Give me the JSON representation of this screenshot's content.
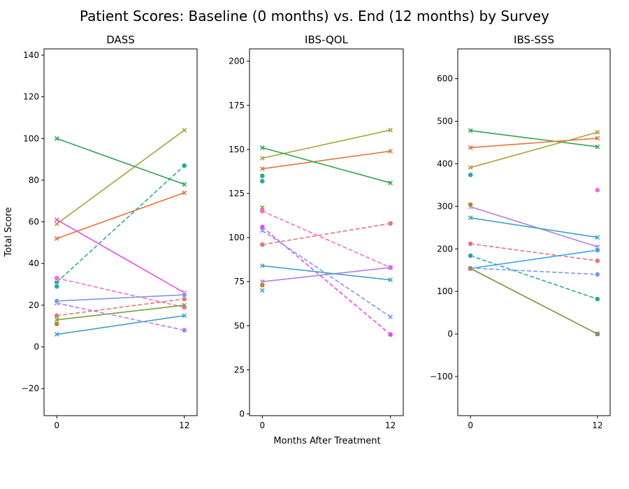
{
  "figure": {
    "title": "Patient Scores: Baseline (0 months) vs. End (12 months) by Survey",
    "xlabel": "Months After Treatment",
    "ylabel": "Total Score"
  },
  "chart_data": [
    {
      "type": "line",
      "title": "DASS",
      "x": [
        0,
        12
      ],
      "xticks": [
        "0",
        "12"
      ],
      "ylim": [
        -33,
        143
      ],
      "yticks": [
        -20,
        0,
        20,
        40,
        60,
        80,
        100,
        120,
        140
      ],
      "series": [
        {
          "color": "#e8737a",
          "marker": "circle",
          "dashed": true,
          "values": [
            15,
            23
          ]
        },
        {
          "color": "#e8723a",
          "marker": "x",
          "dashed": false,
          "values": [
            52,
            74
          ]
        },
        {
          "color": "#a8a336",
          "marker": "x",
          "dashed": false,
          "values": [
            59,
            104
          ]
        },
        {
          "color": "#31a354",
          "marker": "x",
          "dashed": false,
          "values": [
            100,
            78
          ]
        },
        {
          "color": "#2ca89a",
          "marker": "circle",
          "dashed": true,
          "values": [
            31,
            87
          ]
        },
        {
          "color": "#3ba3c8",
          "marker": "x",
          "dashed": false,
          "values": [
            6,
            15
          ]
        },
        {
          "color": "#f56ad8",
          "marker": "circle",
          "dashed": true,
          "values": [
            33,
            19
          ]
        },
        {
          "color": "#e84ce8",
          "marker": "x",
          "dashed": false,
          "values": [
            61,
            26
          ]
        },
        {
          "color": "#76a336",
          "marker": "x",
          "dashed": false,
          "values": [
            13,
            20
          ]
        },
        {
          "color": "#b77be8",
          "marker": "x",
          "dashed": true,
          "values": [
            21,
            8
          ]
        },
        {
          "color": "#7a9ae8",
          "marker": "circle",
          "dashed": false,
          "values": [
            22,
            25
          ]
        }
      ],
      "extra_points": [
        {
          "color": "#b7862a",
          "marker": "circle",
          "x": 0,
          "y": 11
        },
        {
          "color": "#2ca89a",
          "marker": "circle",
          "x": 0,
          "y": 29
        },
        {
          "color": "#b77be8",
          "marker": "circle",
          "x": 12,
          "y": 8
        }
      ]
    },
    {
      "type": "line",
      "title": "IBS-QOL",
      "x": [
        0,
        12
      ],
      "xticks": [
        "0",
        "12"
      ],
      "ylim": [
        -1,
        207
      ],
      "yticks": [
        0,
        25,
        50,
        75,
        100,
        125,
        150,
        175,
        200
      ],
      "series": [
        {
          "color": "#a8a336",
          "marker": "x",
          "dashed": false,
          "values": [
            145,
            161
          ]
        },
        {
          "color": "#e8723a",
          "marker": "x",
          "dashed": false,
          "values": [
            139,
            149
          ]
        },
        {
          "color": "#31a354",
          "marker": "x",
          "dashed": false,
          "values": [
            151,
            131
          ]
        },
        {
          "color": "#e8737a",
          "marker": "circle",
          "dashed": true,
          "values": [
            96,
            108
          ]
        },
        {
          "color": "#f56ad8",
          "marker": "circle",
          "dashed": true,
          "values": [
            115,
            83
          ]
        },
        {
          "color": "#e84ce8",
          "marker": "circle",
          "dashed": true,
          "values": [
            106,
            45
          ]
        },
        {
          "color": "#7a9ae8",
          "marker": "x",
          "dashed": true,
          "values": [
            104,
            55
          ]
        },
        {
          "color": "#b77be8",
          "marker": "x",
          "dashed": false,
          "values": [
            75,
            83
          ]
        },
        {
          "color": "#3ba3c8",
          "marker": "x",
          "dashed": false,
          "values": [
            84,
            76
          ]
        }
      ],
      "extra_points": [
        {
          "color": "#2ca89a",
          "marker": "circle",
          "x": 0,
          "y": 135
        },
        {
          "color": "#2ca89a",
          "marker": "circle",
          "x": 0,
          "y": 132
        },
        {
          "color": "#b7862a",
          "marker": "x",
          "x": 0,
          "y": 117
        },
        {
          "color": "#b7862a",
          "marker": "circle",
          "x": 0,
          "y": 73
        },
        {
          "color": "#3ba3c8",
          "marker": "x",
          "x": 0,
          "y": 70
        }
      ]
    },
    {
      "type": "line",
      "title": "IBS-SSS",
      "x": [
        0,
        12
      ],
      "xticks": [
        "0",
        "12"
      ],
      "ylim": [
        -192,
        670
      ],
      "yticks": [
        -100,
        0,
        100,
        200,
        300,
        400,
        500,
        600
      ],
      "series": [
        {
          "color": "#31a354",
          "marker": "x",
          "dashed": false,
          "values": [
            478,
            440
          ]
        },
        {
          "color": "#e8723a",
          "marker": "x",
          "dashed": false,
          "values": [
            438,
            460
          ]
        },
        {
          "color": "#a8a336",
          "marker": "x",
          "dashed": false,
          "values": [
            391,
            474
          ]
        },
        {
          "color": "#b77be8",
          "marker": "x",
          "dashed": false,
          "values": [
            299,
            205
          ]
        },
        {
          "color": "#3ba3c8",
          "marker": "x",
          "dashed": false,
          "values": [
            273,
            227
          ]
        },
        {
          "color": "#e8737a",
          "marker": "circle",
          "dashed": true,
          "values": [
            212,
            172
          ]
        },
        {
          "color": "#2ca89a",
          "marker": "circle",
          "dashed": true,
          "values": [
            184,
            82
          ]
        },
        {
          "color": "#7a9ae8",
          "marker": "circle",
          "dashed": true,
          "values": [
            155,
            140
          ]
        },
        {
          "color": "#3ba3f0",
          "marker": "circle",
          "dashed": false,
          "values": [
            154,
            197
          ]
        },
        {
          "color": "#e84ce8",
          "marker": "circle",
          "dashed": false,
          "values": [
            154,
            0
          ]
        },
        {
          "color": "#76a336",
          "marker": "x",
          "dashed": false,
          "values": [
            154,
            0
          ]
        }
      ],
      "extra_points": [
        {
          "color": "#2ca89a",
          "marker": "circle",
          "x": 0,
          "y": 374
        },
        {
          "color": "#b7862a",
          "marker": "circle",
          "x": 0,
          "y": 304
        },
        {
          "color": "#f56ad8",
          "marker": "circle",
          "x": 12,
          "y": 338
        }
      ]
    }
  ]
}
